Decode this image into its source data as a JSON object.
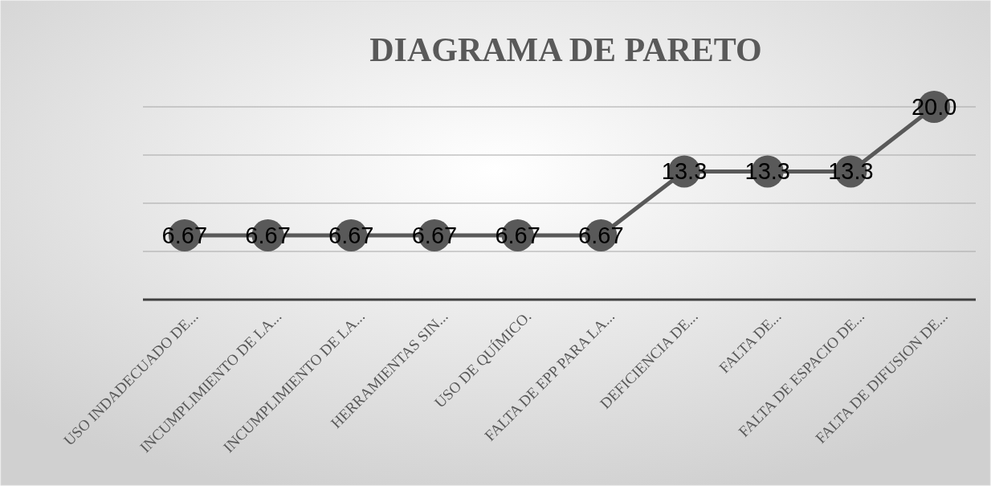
{
  "chart_data": {
    "type": "line",
    "title": "DIAGRAMA DE PARETO",
    "categories": [
      "USO INDADECUADO DE...",
      "INCUMPLIMIENTO DE LA...",
      "INCUMPLIMIENTO DE LA...",
      "HERRAMIENTAS SIN...",
      "USO DE QUÍMICO.",
      "FALTA DE EPP PARA LA...",
      "DEFICIENCIA DE...",
      "FALTA DE...",
      "FALTA DE ESPACIO DE...",
      "FALTA DE DIFUSION DE..."
    ],
    "series": [
      {
        "color": "#595959",
        "values": [
          6.67,
          6.67,
          6.67,
          6.67,
          6.67,
          6.67,
          13.3,
          13.3,
          13.3,
          20.0
        ],
        "value_labels": [
          "6.67",
          "6.67",
          "6.67",
          "6.67",
          "6.67",
          "6.67",
          "13.3",
          "13.3",
          "13.3",
          "20.0"
        ]
      }
    ],
    "ylim": [
      0,
      20
    ],
    "yticks": [
      {
        "value": 0,
        "label": null
      },
      {
        "value": 5,
        "label": null
      },
      {
        "value": 10,
        "label": null
      },
      {
        "value": 15,
        "label": null
      },
      {
        "value": 20,
        "label": null
      }
    ],
    "tick_labels": "x",
    "grid": "y",
    "marker": "circle",
    "line_style": "solid"
  }
}
